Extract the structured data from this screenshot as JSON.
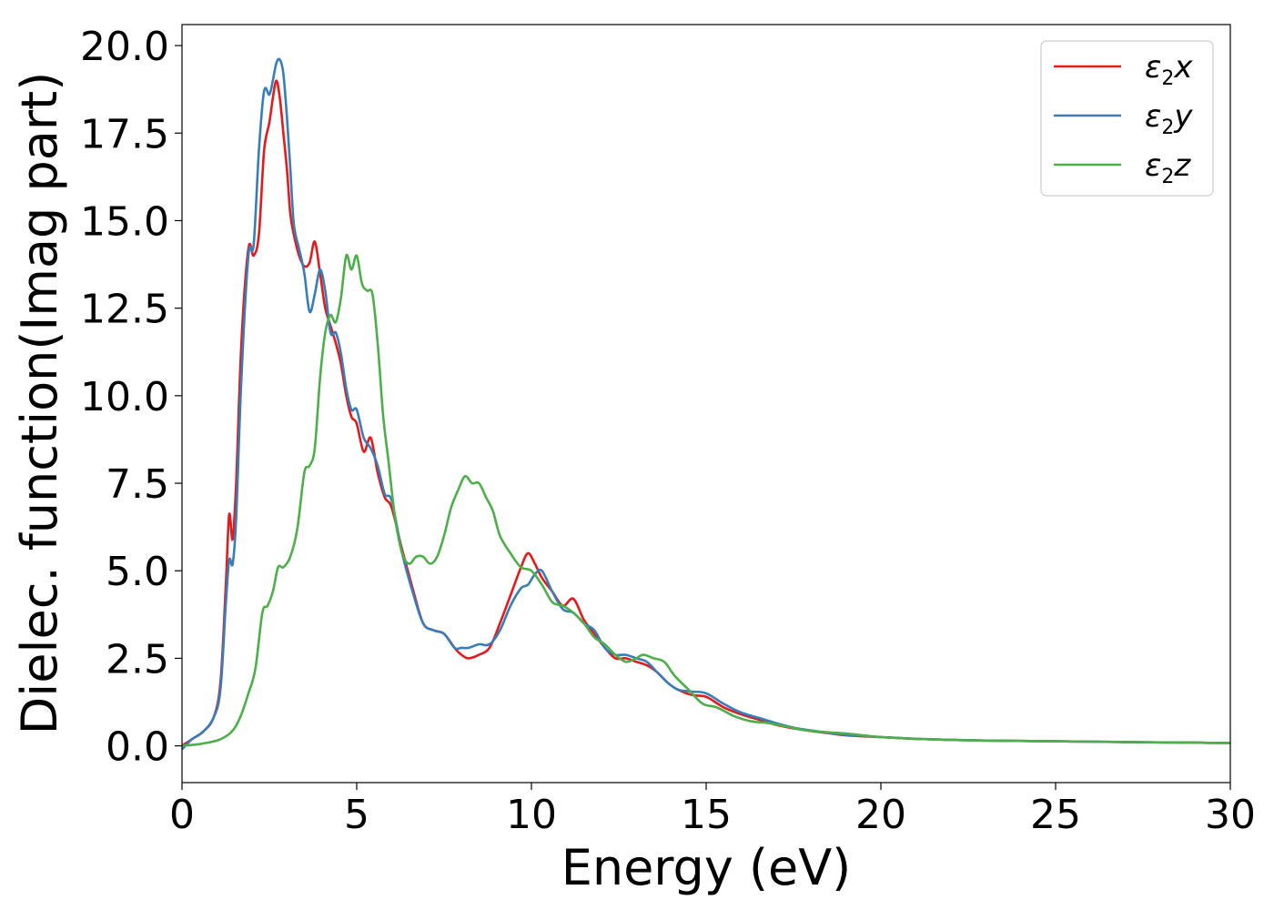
{
  "chart_data": {
    "type": "line",
    "title": "",
    "xlabel": "Energy (eV)",
    "ylabel": "Dielec. function(Imag part)",
    "xlim": [
      0,
      30
    ],
    "ylim": [
      -1.05,
      20.6
    ],
    "xticks": [
      0,
      5,
      10,
      15,
      20,
      25,
      30
    ],
    "xtick_labels": [
      "0",
      "5",
      "10",
      "15",
      "20",
      "25",
      "30"
    ],
    "yticks": [
      0,
      2.5,
      5,
      7.5,
      10,
      12.5,
      15,
      17.5,
      20
    ],
    "ytick_labels": [
      "0.0",
      "2.5",
      "5.0",
      "7.5",
      "10.0",
      "12.5",
      "15.0",
      "17.5",
      "20.0"
    ],
    "grid": false,
    "legend_position": "top-right",
    "series": [
      {
        "name": "ε2x",
        "legend_base": "ε",
        "legend_sub": "2",
        "legend_var": "x",
        "color": "#e41a1c",
        "x": [
          0,
          0.3,
          0.6,
          0.9,
          1.1,
          1.25,
          1.35,
          1.45,
          1.55,
          1.7,
          1.9,
          2.05,
          2.2,
          2.35,
          2.5,
          2.6,
          2.7,
          2.8,
          2.9,
          3.0,
          3.1,
          3.2,
          3.35,
          3.5,
          3.65,
          3.8,
          3.95,
          4.1,
          4.25,
          4.4,
          4.55,
          4.7,
          4.85,
          5.0,
          5.2,
          5.4,
          5.6,
          5.8,
          6.0,
          6.3,
          6.6,
          6.9,
          7.2,
          7.5,
          7.8,
          8.0,
          8.2,
          8.5,
          8.8,
          9.1,
          9.4,
          9.7,
          9.9,
          10.1,
          10.3,
          10.6,
          10.9,
          11.2,
          11.5,
          11.8,
          12.1,
          12.4,
          12.7,
          13.0,
          13.3,
          13.6,
          13.9,
          14.2,
          14.6,
          15.0,
          15.5,
          16.0,
          16.5,
          17.0,
          17.5,
          18.0,
          18.5,
          19.0,
          19.5,
          20.0,
          21.0,
          22.0,
          23.0,
          24.0,
          25.0,
          26.0,
          27.0,
          28.0,
          29.0,
          30.0
        ],
        "y": [
          0.0,
          0.2,
          0.4,
          0.8,
          1.8,
          4.5,
          6.6,
          5.9,
          7.5,
          11.5,
          14.2,
          14.0,
          14.6,
          17.0,
          17.8,
          18.5,
          19.0,
          18.5,
          17.5,
          16.5,
          15.2,
          14.6,
          14.0,
          13.7,
          13.8,
          14.4,
          13.5,
          12.5,
          12.0,
          11.5,
          10.9,
          10.0,
          9.4,
          9.2,
          8.4,
          8.8,
          7.8,
          7.1,
          6.8,
          5.6,
          4.5,
          3.5,
          3.3,
          3.2,
          2.8,
          2.6,
          2.5,
          2.6,
          2.8,
          3.5,
          4.3,
          5.1,
          5.5,
          5.2,
          4.8,
          4.4,
          4.0,
          4.2,
          3.6,
          3.2,
          2.8,
          2.5,
          2.5,
          2.4,
          2.3,
          2.1,
          1.8,
          1.6,
          1.45,
          1.4,
          1.1,
          0.9,
          0.75,
          0.6,
          0.5,
          0.42,
          0.36,
          0.3,
          0.27,
          0.25,
          0.2,
          0.17,
          0.15,
          0.14,
          0.13,
          0.12,
          0.11,
          0.1,
          0.09,
          0.08
        ]
      },
      {
        "name": "ε2y",
        "legend_base": "ε",
        "legend_sub": "2",
        "legend_var": "y",
        "color": "#377eb8",
        "x": [
          0,
          0.3,
          0.6,
          0.9,
          1.1,
          1.25,
          1.35,
          1.45,
          1.55,
          1.7,
          1.9,
          2.05,
          2.2,
          2.35,
          2.5,
          2.6,
          2.7,
          2.8,
          2.9,
          3.0,
          3.1,
          3.2,
          3.35,
          3.5,
          3.65,
          3.8,
          3.95,
          4.1,
          4.25,
          4.4,
          4.55,
          4.7,
          4.85,
          5.0,
          5.2,
          5.4,
          5.6,
          5.8,
          6.0,
          6.3,
          6.6,
          6.9,
          7.2,
          7.5,
          7.8,
          8.0,
          8.2,
          8.5,
          8.8,
          9.1,
          9.4,
          9.7,
          9.9,
          10.1,
          10.3,
          10.6,
          10.9,
          11.2,
          11.5,
          11.8,
          12.1,
          12.4,
          12.7,
          13.0,
          13.3,
          13.6,
          13.9,
          14.2,
          14.6,
          15.0,
          15.5,
          16.0,
          16.5,
          17.0,
          17.5,
          18.0,
          18.5,
          19.0,
          19.5,
          20.0,
          21.0,
          22.0,
          23.0,
          24.0,
          25.0,
          26.0,
          27.0,
          28.0,
          29.0,
          30.0
        ],
        "y": [
          -0.1,
          0.2,
          0.4,
          0.8,
          1.6,
          4.0,
          5.3,
          5.2,
          6.5,
          10.5,
          14.0,
          14.3,
          17.0,
          18.7,
          18.6,
          19.0,
          19.5,
          19.6,
          19.2,
          18.0,
          16.5,
          14.9,
          14.2,
          13.5,
          12.4,
          12.9,
          13.6,
          13.0,
          11.8,
          11.8,
          11.2,
          10.2,
          9.6,
          9.6,
          8.8,
          8.5,
          8.0,
          7.2,
          7.0,
          5.5,
          4.4,
          3.5,
          3.3,
          3.2,
          2.8,
          2.8,
          2.8,
          2.9,
          2.9,
          3.3,
          4.0,
          4.5,
          4.6,
          4.9,
          5.0,
          4.4,
          3.9,
          3.8,
          3.5,
          3.3,
          2.8,
          2.6,
          2.6,
          2.5,
          2.4,
          2.1,
          1.8,
          1.6,
          1.55,
          1.5,
          1.2,
          0.95,
          0.8,
          0.65,
          0.52,
          0.44,
          0.37,
          0.31,
          0.28,
          0.25,
          0.2,
          0.17,
          0.15,
          0.14,
          0.13,
          0.12,
          0.11,
          0.1,
          0.09,
          0.08
        ]
      },
      {
        "name": "ε2z",
        "legend_base": "ε",
        "legend_sub": "2",
        "legend_var": "z",
        "color": "#4daf4a",
        "x": [
          0,
          0.5,
          1.0,
          1.3,
          1.5,
          1.7,
          1.9,
          2.1,
          2.3,
          2.45,
          2.6,
          2.75,
          2.9,
          3.1,
          3.3,
          3.5,
          3.65,
          3.8,
          3.95,
          4.1,
          4.25,
          4.4,
          4.55,
          4.7,
          4.85,
          5.0,
          5.15,
          5.3,
          5.45,
          5.6,
          5.75,
          5.9,
          6.1,
          6.3,
          6.5,
          6.7,
          6.9,
          7.1,
          7.3,
          7.5,
          7.7,
          7.9,
          8.1,
          8.3,
          8.5,
          8.7,
          8.9,
          9.1,
          9.4,
          9.7,
          10.0,
          10.3,
          10.6,
          10.9,
          11.2,
          11.5,
          11.8,
          12.1,
          12.4,
          12.7,
          13.0,
          13.2,
          13.5,
          13.8,
          14.1,
          14.5,
          14.9,
          15.3,
          15.8,
          16.3,
          16.8,
          17.3,
          17.8,
          18.3,
          19.0,
          20.0,
          21.0,
          22.0,
          23.0,
          24.0,
          25.0,
          26.0,
          27.0,
          28.0,
          29.0,
          30.0
        ],
        "y": [
          0.0,
          0.05,
          0.15,
          0.3,
          0.5,
          0.9,
          1.5,
          2.2,
          3.8,
          4.0,
          4.4,
          5.1,
          5.1,
          5.4,
          6.2,
          7.8,
          8.0,
          8.5,
          10.5,
          11.8,
          12.3,
          12.1,
          12.8,
          14.0,
          13.6,
          14.0,
          13.2,
          13.0,
          12.9,
          11.5,
          9.5,
          8.2,
          6.5,
          5.5,
          5.2,
          5.4,
          5.4,
          5.2,
          5.4,
          6.0,
          6.8,
          7.3,
          7.7,
          7.5,
          7.5,
          7.1,
          6.7,
          6.0,
          5.5,
          5.1,
          5.0,
          4.6,
          4.1,
          4.0,
          3.8,
          3.5,
          3.1,
          2.9,
          2.6,
          2.4,
          2.5,
          2.6,
          2.5,
          2.4,
          2.0,
          1.6,
          1.2,
          1.1,
          0.85,
          0.7,
          0.65,
          0.55,
          0.45,
          0.4,
          0.35,
          0.25,
          0.2,
          0.17,
          0.15,
          0.14,
          0.13,
          0.12,
          0.11,
          0.1,
          0.09,
          0.08
        ]
      }
    ]
  }
}
